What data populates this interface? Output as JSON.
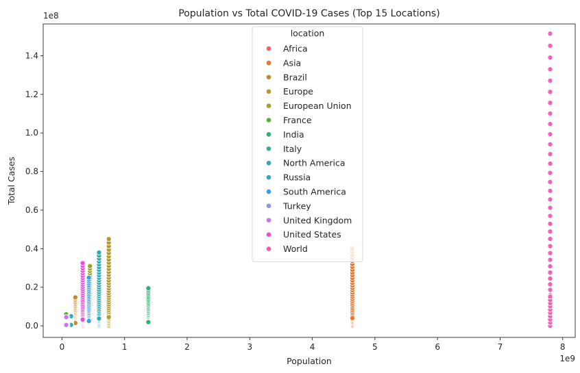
{
  "chart_data": {
    "type": "scatter",
    "title": "Population vs Total COVID-19 Cases (Top 15 Locations)",
    "xlabel": "Population",
    "ylabel": "Total Cases",
    "x_offset_label": "1e9",
    "y_offset_label": "1e8",
    "x_scale": 1000000000,
    "y_scale": 100000000,
    "xlim": [
      -0.3,
      8.2
    ],
    "ylim": [
      -0.06,
      1.565
    ],
    "x_ticks": [
      0,
      1,
      2,
      3,
      4,
      5,
      6,
      7,
      8
    ],
    "x_tick_labels": [
      "0",
      "1",
      "2",
      "3",
      "4",
      "5",
      "6",
      "7",
      "8"
    ],
    "y_ticks": [
      0,
      0.2,
      0.4,
      0.6,
      0.8,
      1.0,
      1.2,
      1.4
    ],
    "y_tick_labels": [
      "0.0",
      "0.2",
      "0.4",
      "0.6",
      "0.8",
      "1.0",
      "1.2",
      "1.4"
    ],
    "grid": false,
    "legend_title": "location",
    "legend_placement": "upper-center",
    "series": [
      {
        "name": "Africa",
        "color": "#f0636e",
        "x": 1.37,
        "ymax": 0.045
      },
      {
        "name": "Asia",
        "color": "#e8762e",
        "x": 4.64,
        "ymax": 0.4
      },
      {
        "name": "Brazil",
        "color": "#c48a32",
        "x": 0.213,
        "ymax": 0.148
      },
      {
        "name": "Europe",
        "color": "#b19a30",
        "x": 0.748,
        "ymax": 0.45
      },
      {
        "name": "European Union",
        "color": "#9ea330",
        "x": 0.447,
        "ymax": 0.31
      },
      {
        "name": "France",
        "color": "#54b23a",
        "x": 0.067,
        "ymax": 0.06
      },
      {
        "name": "India",
        "color": "#33b06f",
        "x": 1.38,
        "ymax": 0.195
      },
      {
        "name": "Italy",
        "color": "#34ad99",
        "x": 0.0605,
        "ymax": 0.043
      },
      {
        "name": "North America",
        "color": "#34aaad",
        "x": 0.592,
        "ymax": 0.38
      },
      {
        "name": "Russia",
        "color": "#38a6c1",
        "x": 0.146,
        "ymax": 0.05
      },
      {
        "name": "South America",
        "color": "#3a9ee5",
        "x": 0.43,
        "ymax": 0.25
      },
      {
        "name": "Turkey",
        "color": "#8f92f0",
        "x": 0.084,
        "ymax": 0.045
      },
      {
        "name": "United Kingdom",
        "color": "#c874f0",
        "x": 0.0679,
        "ymax": 0.045
      },
      {
        "name": "United States",
        "color": "#ea4fd8",
        "x": 0.331,
        "ymax": 0.325
      },
      {
        "name": "World",
        "color": "#f062b5",
        "x": 7.8,
        "ymax": 1.515
      }
    ]
  }
}
